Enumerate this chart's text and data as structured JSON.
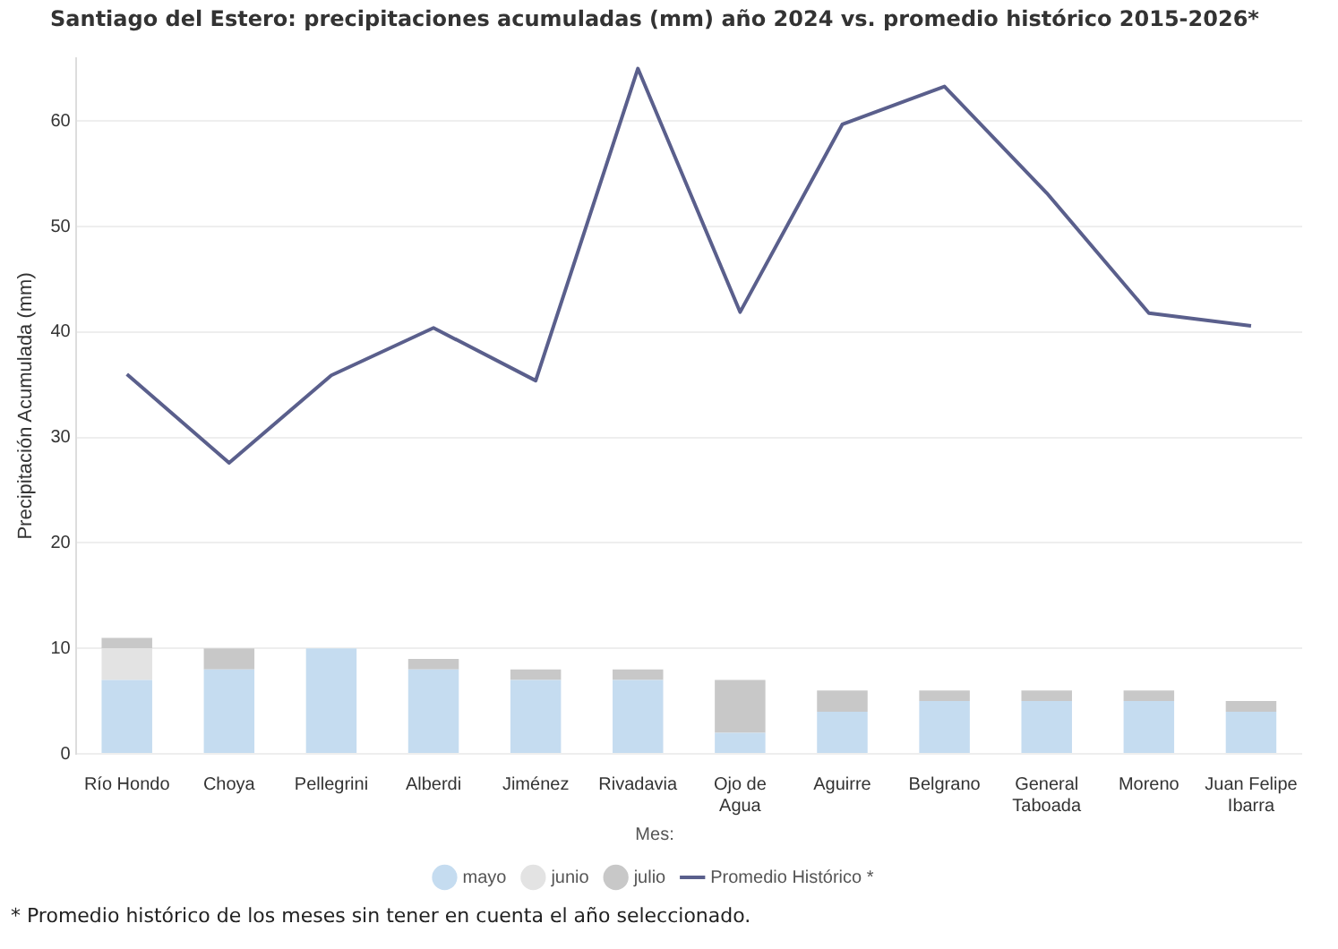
{
  "chart_data": {
    "type": "bar",
    "stacked": true,
    "title": "Santiago del Estero: precipitaciones acumuladas (mm) año 2024 vs. promedio histórico 2015-2026*",
    "ylabel": "Precipitación Acumulada (mm)",
    "legend_title": "Mes:",
    "legend": "bottom",
    "grid": "y",
    "categories": [
      "Río Hondo",
      "Choya",
      "Pellegrini",
      "Alberdi",
      "Jiménez",
      "Rivadavia",
      "Ojo de Agua",
      "Aguirre",
      "Belgrano",
      "General Taboada",
      "Moreno",
      "Juan Felipe Ibarra"
    ],
    "ylim": [
      0,
      66
    ],
    "yticks": [
      0,
      10,
      20,
      30,
      40,
      50,
      60
    ],
    "series": [
      {
        "name": "mayo",
        "color": "#c5dcf0",
        "values": [
          7,
          8,
          10,
          8,
          7,
          7,
          2,
          4,
          5,
          5,
          5,
          4
        ]
      },
      {
        "name": "junio",
        "color": "#e3e3e3",
        "values": [
          3,
          0,
          0,
          0,
          0,
          0,
          0,
          0,
          0,
          0,
          0,
          0
        ]
      },
      {
        "name": "julio",
        "color": "#c8c8c8",
        "values": [
          1,
          2,
          0,
          1,
          1,
          1,
          5,
          2,
          1,
          1,
          1,
          1
        ]
      },
      {
        "name": "Promedio Histórico *",
        "type": "line",
        "color": "#5a5f8c",
        "values": [
          36.0,
          27.6,
          35.9,
          40.4,
          35.4,
          65.0,
          41.9,
          59.7,
          63.3,
          53.2,
          41.8,
          40.6
        ]
      }
    ],
    "annotations": [
      "* Promedio histórico de los meses sin tener en cuenta el año seleccionado."
    ]
  }
}
